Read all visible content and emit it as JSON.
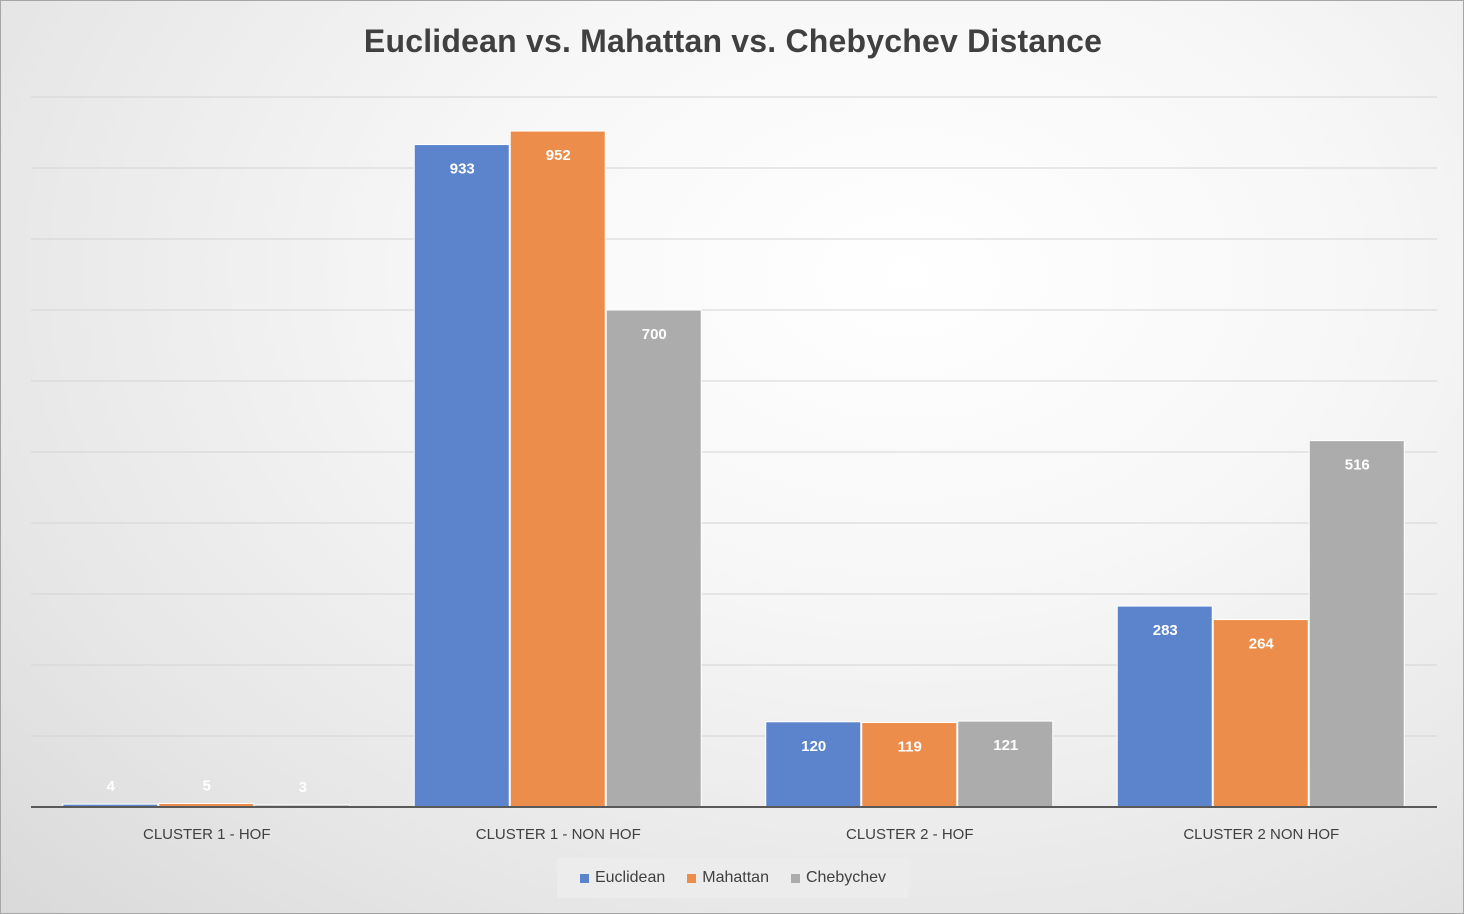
{
  "chart_data": {
    "type": "bar",
    "title": "Euclidean vs. Mahattan vs. Chebychev Distance",
    "xlabel": "",
    "ylabel": "",
    "categories": [
      "CLUSTER 1 - HOF",
      "CLUSTER 1 - NON HOF",
      "CLUSTER 2 - HOF",
      "CLUSTER 2 NON HOF"
    ],
    "series": [
      {
        "name": "Euclidean",
        "color": "#5b84cc",
        "values": [
          4,
          933,
          120,
          283
        ]
      },
      {
        "name": "Mahattan",
        "color": "#ed8d4c",
        "values": [
          5,
          952,
          119,
          264
        ]
      },
      {
        "name": "Chebychev",
        "color": "#acacac",
        "values": [
          3,
          700,
          121,
          516
        ]
      }
    ],
    "ylim": [
      0,
      1000
    ],
    "gridlines": true,
    "y_tick_labels_shown": false,
    "data_labels": true,
    "legend_position": "bottom"
  }
}
